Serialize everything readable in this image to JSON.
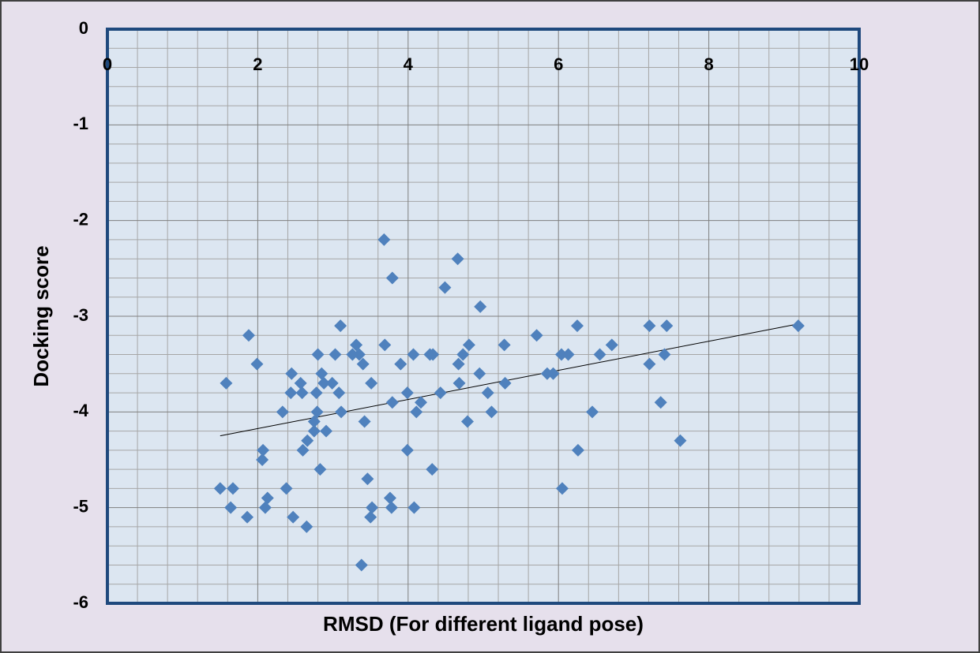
{
  "chart_data": {
    "type": "scatter",
    "x_label": "RMSD (For different ligand pose)",
    "y_label": "Docking score",
    "xlim": [
      0,
      10
    ],
    "xticks": [
      0,
      2,
      4,
      6,
      8,
      10
    ],
    "ylim": [
      -6,
      0
    ],
    "yticks": [
      0,
      -1,
      -2,
      -3,
      -4,
      -5,
      -6
    ],
    "grid": true,
    "series": [
      {
        "color": "#4f81bd",
        "x": [
          1.5,
          1.58,
          1.64,
          1.67,
          1.86,
          1.88,
          1.99,
          2.06,
          2.07,
          2.1,
          2.13,
          2.33,
          2.38,
          2.44,
          2.45,
          2.47,
          2.57,
          2.59,
          2.6,
          2.65,
          2.66,
          2.75,
          2.75,
          2.78,
          2.79,
          2.8,
          2.83,
          2.85,
          2.88,
          2.91,
          2.99,
          3.03,
          3.08,
          3.1,
          3.11,
          3.26,
          3.31,
          3.35,
          3.38,
          3.4,
          3.42,
          3.46,
          3.5,
          3.51,
          3.52,
          3.68,
          3.69,
          3.76,
          3.78,
          3.79,
          3.79,
          3.9,
          3.99,
          3.99,
          4.07,
          4.08,
          4.11,
          4.17,
          4.29,
          4.32,
          4.33,
          4.43,
          4.49,
          4.66,
          4.67,
          4.68,
          4.73,
          4.79,
          4.81,
          4.95,
          4.96,
          5.06,
          5.11,
          5.28,
          5.29,
          5.71,
          5.85,
          5.93,
          6.04,
          6.05,
          6.13,
          6.25,
          6.26,
          6.45,
          6.55,
          6.71,
          7.21,
          7.21,
          7.36,
          7.41,
          7.44,
          7.62,
          9.19
        ],
        "values": [
          -4.8,
          -3.7,
          -5.0,
          -4.8,
          -5.1,
          -3.2,
          -3.5,
          -4.5,
          -4.4,
          -5.0,
          -4.9,
          -4.0,
          -4.8,
          -3.8,
          -3.6,
          -5.1,
          -3.7,
          -3.8,
          -4.4,
          -5.2,
          -4.3,
          -4.2,
          -4.1,
          -3.8,
          -4.0,
          -3.4,
          -4.6,
          -3.6,
          -3.7,
          -4.2,
          -3.7,
          -3.4,
          -3.8,
          -3.1,
          -4.0,
          -3.4,
          -3.3,
          -3.4,
          -5.6,
          -3.5,
          -4.1,
          -4.7,
          -5.1,
          -3.7,
          -5.0,
          -2.2,
          -3.3,
          -4.9,
          -5.0,
          -2.6,
          -3.9,
          -3.5,
          -3.8,
          -4.4,
          -3.4,
          -5.0,
          -4.0,
          -3.9,
          -3.4,
          -4.6,
          -3.4,
          -3.8,
          -2.7,
          -2.4,
          -3.5,
          -3.7,
          -3.4,
          -4.1,
          -3.3,
          -3.6,
          -2.9,
          -3.8,
          -4.0,
          -3.3,
          -3.7,
          -3.2,
          -3.6,
          -3.6,
          -3.4,
          -4.8,
          -3.4,
          -3.1,
          -4.4,
          -4.0,
          -3.4,
          -3.3,
          -3.1,
          -3.5,
          -3.9,
          -3.4,
          -3.1,
          -4.3,
          -3.1
        ]
      }
    ],
    "trendline": {
      "color": "#000000",
      "x": [
        1.5,
        9.19
      ],
      "values": [
        -4.25,
        -3.08
      ]
    }
  }
}
